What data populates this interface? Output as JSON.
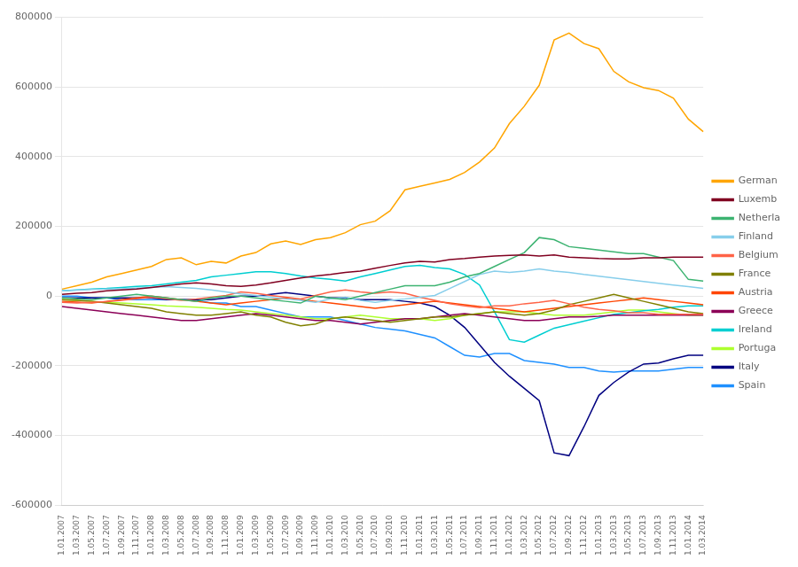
{
  "chart_data": {
    "type": "line",
    "x": [
      "1.01.2007",
      "1.03.2007",
      "1.05.2007",
      "1.07.2007",
      "1.09.2007",
      "1.11.2007",
      "1.01.2008",
      "1.03.2008",
      "1.05.2008",
      "1.07.2008",
      "1.09.2008",
      "1.11.2008",
      "1.01.2009",
      "1.03.2009",
      "1.05.2009",
      "1.07.2009",
      "1.09.2009",
      "1.11.2009",
      "1.01.2010",
      "1.03.2010",
      "1.05.2010",
      "1.07.2010",
      "1.09.2010",
      "1.11.2010",
      "1.01.2011",
      "1.03.2011",
      "1.05.2011",
      "1.07.2011",
      "1.09.2011",
      "1.11.2011",
      "1.01.2012",
      "1.03.2012",
      "1.05.2012",
      "1.07.2012",
      "1.09.2012",
      "1.11.2012",
      "1.01.2013",
      "1.03.2013",
      "1.05.2013",
      "1.07.2013",
      "1.09.2013",
      "1.11.2013",
      "1.01.2014",
      "1.03.2014"
    ],
    "series": [
      {
        "name": "German",
        "color": "#FFA500",
        "values": [
          20000,
          30000,
          40000,
          55000,
          65000,
          75000,
          85000,
          105000,
          110000,
          90000,
          100000,
          95000,
          115000,
          125000,
          150000,
          158000,
          148000,
          162000,
          168000,
          182000,
          205000,
          215000,
          245000,
          305000,
          315000,
          325000,
          335000,
          355000,
          385000,
          425000,
          495000,
          545000,
          605000,
          735000,
          755000,
          725000,
          710000,
          645000,
          615000,
          598000,
          590000,
          568000,
          508000,
          472000
        ]
      },
      {
        "name": "Luxemb",
        "color": "#800020",
        "values": [
          5000,
          8000,
          10000,
          15000,
          18000,
          20000,
          25000,
          30000,
          35000,
          38000,
          35000,
          30000,
          28000,
          32000,
          38000,
          45000,
          52000,
          58000,
          62000,
          68000,
          72000,
          80000,
          88000,
          95000,
          100000,
          98000,
          105000,
          108000,
          112000,
          115000,
          117000,
          118000,
          115000,
          118000,
          112000,
          110000,
          108000,
          107000,
          107000,
          110000,
          110000,
          112000,
          112000,
          112000
        ]
      },
      {
        "name": "Netherla",
        "color": "#3CB371",
        "values": [
          -5000,
          -8000,
          -10000,
          -5000,
          0,
          5000,
          0,
          -5000,
          -10000,
          -15000,
          -5000,
          0,
          0,
          -5000,
          -10000,
          -15000,
          -20000,
          0,
          -5000,
          -10000,
          0,
          10000,
          20000,
          30000,
          30000,
          30000,
          40000,
          55000,
          65000,
          85000,
          105000,
          125000,
          168000,
          162000,
          142000,
          137000,
          132000,
          127000,
          122000,
          122000,
          112000,
          102000,
          48000,
          43000
        ]
      },
      {
        "name": "Finland",
        "color": "#87CEEB",
        "values": [
          15000,
          17000,
          19000,
          20000,
          21000,
          23000,
          25000,
          27000,
          25000,
          22000,
          18000,
          12000,
          6000,
          2000,
          -3000,
          -8000,
          -12000,
          -18000,
          -8000,
          -3000,
          -12000,
          -18000,
          -12000,
          -8000,
          -3000,
          2000,
          22000,
          42000,
          62000,
          72000,
          68000,
          72000,
          78000,
          72000,
          68000,
          62000,
          57000,
          52000,
          47000,
          42000,
          37000,
          32000,
          27000,
          22000
        ]
      },
      {
        "name": "Belgium",
        "color": "#FF6347",
        "values": [
          -18000,
          -20000,
          -18000,
          -16000,
          -12000,
          -8000,
          -3000,
          -8000,
          -12000,
          -8000,
          -3000,
          2000,
          12000,
          8000,
          2000,
          -3000,
          -8000,
          2000,
          12000,
          18000,
          12000,
          8000,
          12000,
          8000,
          -3000,
          -12000,
          -22000,
          -28000,
          -33000,
          -28000,
          -28000,
          -22000,
          -18000,
          -12000,
          -22000,
          -32000,
          -38000,
          -42000,
          -48000,
          -48000,
          -52000,
          -52000,
          -52000,
          -52000
        ]
      },
      {
        "name": "France",
        "color": "#808000",
        "values": [
          -10000,
          -12000,
          -15000,
          -20000,
          -25000,
          -30000,
          -35000,
          -45000,
          -50000,
          -55000,
          -55000,
          -50000,
          -45000,
          -55000,
          -60000,
          -75000,
          -85000,
          -80000,
          -65000,
          -60000,
          -65000,
          -70000,
          -75000,
          -70000,
          -65000,
          -60000,
          -60000,
          -55000,
          -50000,
          -45000,
          -50000,
          -55000,
          -50000,
          -40000,
          -25000,
          -15000,
          -5000,
          5000,
          -5000,
          -15000,
          -25000,
          -35000,
          -45000,
          -50000
        ]
      },
      {
        "name": "Austria",
        "color": "#FF4500",
        "values": [
          -15000,
          -17000,
          -20000,
          -15000,
          -10000,
          -5000,
          0,
          -5000,
          -10000,
          -15000,
          -20000,
          -25000,
          -20000,
          -15000,
          -10000,
          -5000,
          -10000,
          -15000,
          -20000,
          -25000,
          -30000,
          -35000,
          -30000,
          -25000,
          -20000,
          -15000,
          -20000,
          -25000,
          -30000,
          -35000,
          -40000,
          -45000,
          -40000,
          -35000,
          -30000,
          -25000,
          -20000,
          -15000,
          -10000,
          -5000,
          -10000,
          -15000,
          -20000,
          -25000
        ]
      },
      {
        "name": "Greece",
        "color": "#8B0057",
        "values": [
          -30000,
          -35000,
          -40000,
          -45000,
          -50000,
          -55000,
          -60000,
          -65000,
          -70000,
          -70000,
          -65000,
          -60000,
          -55000,
          -50000,
          -55000,
          -60000,
          -65000,
          -70000,
          -70000,
          -75000,
          -80000,
          -75000,
          -70000,
          -65000,
          -65000,
          -60000,
          -55000,
          -50000,
          -55000,
          -60000,
          -65000,
          -70000,
          -70000,
          -65000,
          -60000,
          -60000,
          -58000,
          -55000,
          -55000,
          -55000,
          -55000,
          -55000,
          -55000,
          -55000
        ]
      },
      {
        "name": "Ireland",
        "color": "#00CED1",
        "values": [
          15000,
          18000,
          20000,
          22000,
          25000,
          28000,
          30000,
          35000,
          40000,
          45000,
          55000,
          60000,
          65000,
          70000,
          70000,
          65000,
          58000,
          52000,
          48000,
          43000,
          55000,
          65000,
          75000,
          85000,
          88000,
          82000,
          78000,
          62000,
          32000,
          -45000,
          -125000,
          -132000,
          -112000,
          -92000,
          -82000,
          -72000,
          -62000,
          -52000,
          -48000,
          -42000,
          -38000,
          -32000,
          -28000,
          -28000
        ]
      },
      {
        "name": "Portuga",
        "color": "#ADFF2F",
        "values": [
          -10000,
          -12000,
          -15000,
          -18000,
          -20000,
          -22000,
          -25000,
          -28000,
          -30000,
          -32000,
          -35000,
          -38000,
          -40000,
          -45000,
          -50000,
          -55000,
          -60000,
          -65000,
          -65000,
          -60000,
          -55000,
          -60000,
          -65000,
          -65000,
          -65000,
          -70000,
          -65000,
          -55000,
          -50000,
          -45000,
          -45000,
          -45000,
          -50000,
          -55000,
          -55000,
          -55000,
          -50000,
          -45000,
          -40000,
          -40000,
          -45000,
          -50000,
          -55000,
          -55000
        ]
      },
      {
        "name": "Italy",
        "color": "#000080",
        "values": [
          -5000,
          -5000,
          -5000,
          -5000,
          -5000,
          -5000,
          -5000,
          -10000,
          -10000,
          -10000,
          -10000,
          -5000,
          0,
          0,
          5000,
          10000,
          5000,
          0,
          -5000,
          -5000,
          -10000,
          -10000,
          -10000,
          -15000,
          -20000,
          -30000,
          -55000,
          -90000,
          -140000,
          -190000,
          -230000,
          -265000,
          -300000,
          -450000,
          -458000,
          -375000,
          -285000,
          -248000,
          -218000,
          -195000,
          -192000,
          -180000,
          -170000,
          -170000
        ]
      },
      {
        "name": "Spain",
        "color": "#1E90FF",
        "values": [
          0,
          0,
          -5000,
          -5000,
          -10000,
          -10000,
          -10000,
          -10000,
          -10000,
          -10000,
          -20000,
          -20000,
          -30000,
          -30000,
          -40000,
          -50000,
          -60000,
          -60000,
          -60000,
          -70000,
          -80000,
          -90000,
          -95000,
          -100000,
          -110000,
          -120000,
          -145000,
          -170000,
          -175000,
          -165000,
          -165000,
          -185000,
          -190000,
          -195000,
          -205000,
          -205000,
          -215000,
          -218000,
          -215000,
          -215000,
          -215000,
          -210000,
          -205000,
          -205000
        ]
      }
    ],
    "ylim": [
      -600000,
      800000
    ],
    "yticks": [
      -600000,
      -400000,
      -200000,
      0,
      200000,
      400000,
      600000,
      800000
    ],
    "grid": "y",
    "legend": "right"
  }
}
